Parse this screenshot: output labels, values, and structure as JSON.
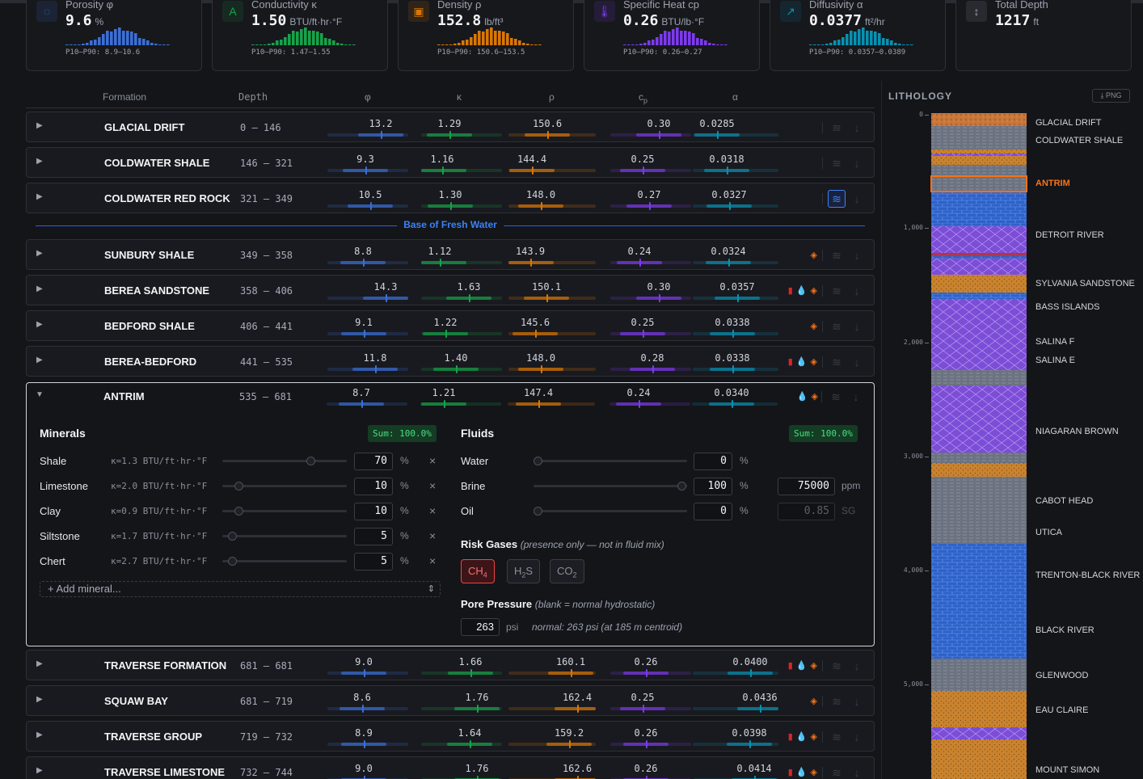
{
  "colors": {
    "blue": "#3b6fd8",
    "green": "#16a34a",
    "orange": "#d97706",
    "purple": "#7c3aed",
    "teal": "#0891b2",
    "red": "#ef4444"
  },
  "stats": [
    {
      "label": "Porosity φ",
      "value": "9.6",
      "unit": "%",
      "p": "P10–P90: 8.9–10.6",
      "icon": "porosity-icon",
      "glyph": "◌",
      "color": "#3b6fd8"
    },
    {
      "label": "Conductivity κ",
      "value": "1.50",
      "unit": "BTU/ft·hr·°F",
      "p": "P10–P90: 1.47–1.55",
      "icon": "conductivity-icon",
      "glyph": "A",
      "color": "#16a34a"
    },
    {
      "label": "Density ρ",
      "value": "152.8",
      "unit": "lb/ft³",
      "p": "P10–P90: 150.6–153.5",
      "icon": "density-icon",
      "glyph": "▣",
      "color": "#d97706"
    },
    {
      "label": "Specific Heat cp",
      "value": "0.26",
      "unit": "BTU/lb·°F",
      "p": "P10–P90: 0.26–0.27",
      "icon": "thermometer-icon",
      "glyph": "🌡",
      "color": "#7c3aed"
    },
    {
      "label": "Diffusivity α",
      "value": "0.0377",
      "unit": "ft²/hr",
      "p": "P10–P90: 0.0357–0.0389",
      "icon": "trend-icon",
      "glyph": "↗",
      "color": "#0891b2"
    },
    {
      "label": "Total Depth",
      "value": "1217",
      "unit": "ft",
      "p": "",
      "icon": "depth-icon",
      "glyph": "↕",
      "color": "#9ca3af"
    }
  ],
  "table_header": {
    "formation": "Formation",
    "depth": "Depth",
    "phi": "φ",
    "k": "κ",
    "rho": "ρ",
    "cp": "cp",
    "alpha": "α"
  },
  "fresh_water_label": "Base of Fresh Water",
  "formations": [
    {
      "name": "GLACIAL DRIFT",
      "depth": "0 – 146",
      "phi": "13.2",
      "k": "1.29",
      "rho": "150.6",
      "cp": "0.30",
      "a": "0.0285",
      "tags": [],
      "active": false
    },
    {
      "name": "COLDWATER SHALE",
      "depth": "146 – 321",
      "phi": "9.3",
      "k": "1.16",
      "rho": "144.4",
      "cp": "0.25",
      "a": "0.0318",
      "tags": [],
      "active": false
    },
    {
      "name": "COLDWATER RED ROCK",
      "depth": "321 – 349",
      "phi": "10.5",
      "k": "1.30",
      "rho": "148.0",
      "cp": "0.27",
      "a": "0.0327",
      "tags": [],
      "active": true
    },
    {
      "name": "SUNBURY SHALE",
      "depth": "349 – 358",
      "phi": "8.8",
      "k": "1.12",
      "rho": "143.9",
      "cp": "0.24",
      "a": "0.0324",
      "tags": [
        "gas"
      ],
      "active": false
    },
    {
      "name": "BEREA SANDSTONE",
      "depth": "358 – 406",
      "phi": "14.3",
      "k": "1.63",
      "rho": "150.1",
      "cp": "0.30",
      "a": "0.0357",
      "tags": [
        "oil",
        "water",
        "gas"
      ],
      "active": false
    },
    {
      "name": "BEDFORD SHALE",
      "depth": "406 – 441",
      "phi": "9.1",
      "k": "1.22",
      "rho": "145.6",
      "cp": "0.25",
      "a": "0.0338",
      "tags": [
        "gas"
      ],
      "active": false
    },
    {
      "name": "BEREA-BEDFORD",
      "depth": "441 – 535",
      "phi": "11.8",
      "k": "1.40",
      "rho": "148.0",
      "cp": "0.28",
      "a": "0.0338",
      "tags": [
        "oil",
        "water",
        "gas"
      ],
      "active": false
    },
    {
      "name": "ANTRIM",
      "depth": "535 – 681",
      "phi": "8.7",
      "k": "1.21",
      "rho": "147.4",
      "cp": "0.24",
      "a": "0.0340",
      "tags": [
        "water",
        "gas"
      ],
      "active": false
    },
    {
      "name": "TRAVERSE FORMATION",
      "depth": "681 – 681",
      "phi": "9.0",
      "k": "1.66",
      "rho": "160.1",
      "cp": "0.26",
      "a": "0.0400",
      "tags": [
        "oil",
        "water",
        "gas"
      ],
      "active": false
    },
    {
      "name": "SQUAW BAY",
      "depth": "681 – 719",
      "phi": "8.6",
      "k": "1.76",
      "rho": "162.4",
      "cp": "0.25",
      "a": "0.0436",
      "tags": [
        "gas"
      ],
      "active": false
    },
    {
      "name": "TRAVERSE GROUP",
      "depth": "719 – 732",
      "phi": "8.9",
      "k": "1.64",
      "rho": "159.2",
      "cp": "0.26",
      "a": "0.0398",
      "tags": [
        "oil",
        "water",
        "gas"
      ],
      "active": false
    },
    {
      "name": "TRAVERSE LIMESTONE",
      "depth": "732 – 744",
      "phi": "9.0",
      "k": "1.76",
      "rho": "162.6",
      "cp": "0.26",
      "a": "0.0414",
      "tags": [
        "oil",
        "water",
        "gas"
      ],
      "active": false
    }
  ],
  "editor": {
    "minerals_title": "Minerals",
    "minerals_sum": "Sum: 100.0%",
    "minerals": [
      {
        "name": "Shale",
        "k": "κ=1.3 BTU/ft·hr·°F",
        "value": "70",
        "frac": 0.7
      },
      {
        "name": "Limestone",
        "k": "κ=2.0 BTU/ft·hr·°F",
        "value": "10",
        "frac": 0.1
      },
      {
        "name": "Clay",
        "k": "κ=0.9 BTU/ft·hr·°F",
        "value": "10",
        "frac": 0.1
      },
      {
        "name": "Siltstone",
        "k": "κ=1.7 BTU/ft·hr·°F",
        "value": "5",
        "frac": 0.05
      },
      {
        "name": "Chert",
        "k": "κ=2.7 BTU/ft·hr·°F",
        "value": "5",
        "frac": 0.05
      }
    ],
    "add_mineral": "+ Add mineral...",
    "fluids_title": "Fluids",
    "fluids_sum": "Sum: 100.0%",
    "fluids": [
      {
        "name": "Water",
        "value": "0",
        "frac": 0,
        "extra": "",
        "extra_unit": ""
      },
      {
        "name": "Brine",
        "value": "100",
        "frac": 1,
        "extra": "75000",
        "extra_unit": "ppm"
      },
      {
        "name": "Oil",
        "value": "0",
        "frac": 0,
        "extra": "0.85",
        "extra_unit": "SG"
      }
    ],
    "pct": "%",
    "remove": "×",
    "risk_title": "Risk Gases",
    "risk_note": "(presence only — not in fluid mix)",
    "gases": [
      {
        "label": "CH",
        "sub": "4",
        "on": true
      },
      {
        "label": "H",
        "sub": "2",
        "post": "S",
        "on": false
      },
      {
        "label": "CO",
        "sub": "2",
        "on": false
      }
    ],
    "pore_title": "Pore Pressure",
    "pore_note": "(blank = normal hydrostatic)",
    "pore_value": "263",
    "pore_unit": "psi",
    "pore_normal": "normal: 263 psi (at 185 m centroid)"
  },
  "lithology": {
    "title": "LITHOLOGY",
    "png": "PNG",
    "depth_ticks": [
      "0",
      "1,000",
      "2,000",
      "3,000",
      "4,000",
      "5,000"
    ],
    "labels": [
      "GLACIAL DRIFT",
      "COLDWATER SHALE",
      "ANTRIM",
      "DETROIT RIVER",
      "SYLVANIA SANDSTONE",
      "BASS ISLANDS",
      "SALINA F",
      "SALINA E",
      "NIAGARAN BROWN",
      "CABOT HEAD",
      "UTICA",
      "TRENTON-BLACK RIVER",
      "BLACK RIVER",
      "GLENWOOD",
      "EAU CLAIRE",
      "MOUNT SIMON"
    ],
    "highlight": "ANTRIM"
  }
}
